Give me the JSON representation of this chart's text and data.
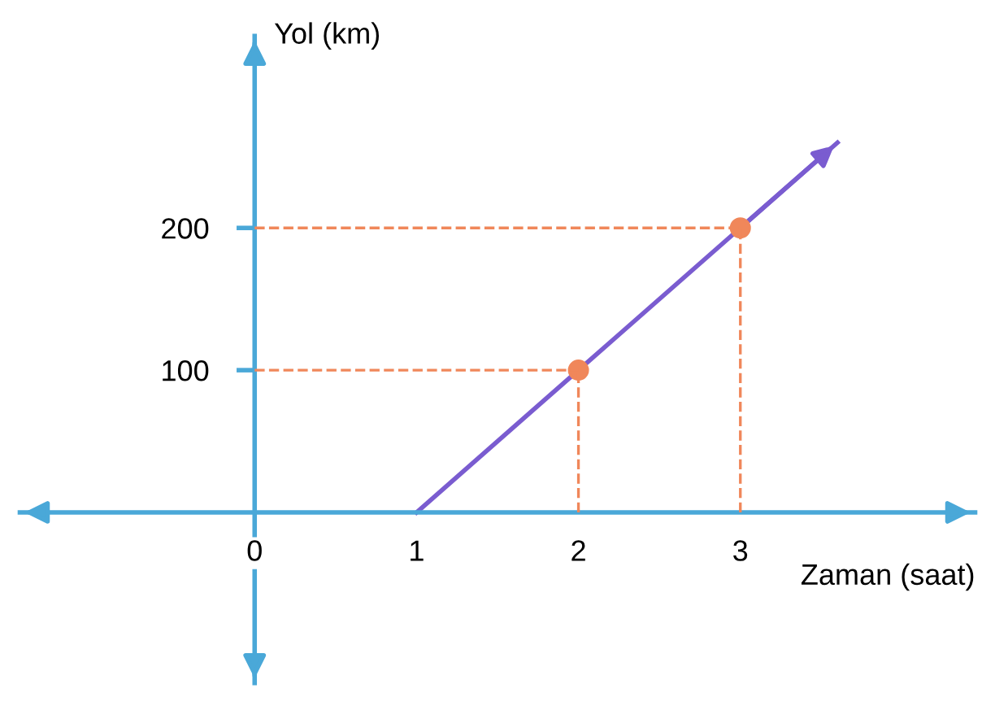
{
  "chart_data": {
    "type": "line",
    "xlabel": "Zaman (saat)",
    "ylabel": "Yol (km)",
    "xlim": [
      -1.45,
      4.45
    ],
    "ylim": [
      -120,
      335
    ],
    "xticks": [
      0,
      1,
      2,
      3
    ],
    "yticks": [
      100,
      200
    ],
    "grid": false,
    "legend": false,
    "series": [
      {
        "type": "line",
        "color": "#7a5cd0",
        "x": [
          1,
          2,
          3,
          3.6
        ],
        "values": [
          0,
          100,
          200,
          260
        ],
        "marker": "none",
        "line_style": "solid"
      },
      {
        "type": "scatter",
        "color": "#f0875a",
        "x": [
          2,
          3
        ],
        "values": [
          100,
          200
        ],
        "xerrors": [
          [
            0,
            2
          ],
          [
            0,
            3
          ]
        ],
        "errors": [
          [
            0,
            100
          ],
          [
            0,
            200
          ]
        ],
        "marker": "circle",
        "line_style": "dashed"
      }
    ]
  }
}
